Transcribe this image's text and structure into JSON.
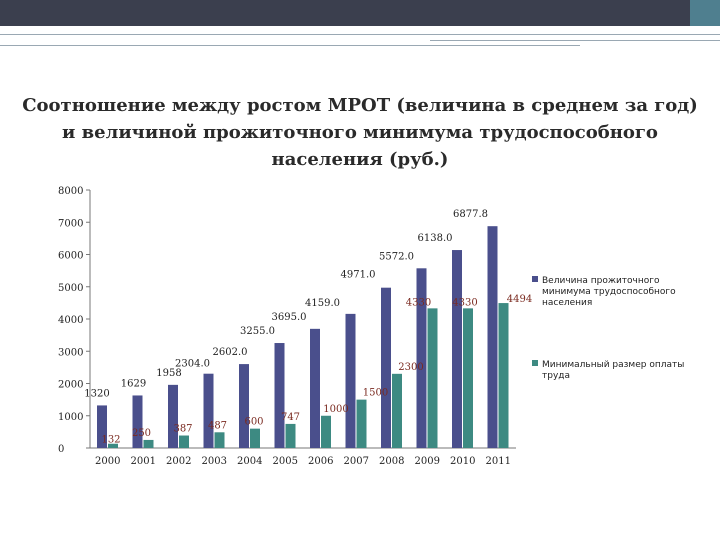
{
  "chart_data": {
    "type": "bar",
    "title": "Соотношение между ростом МРОТ (величина в среднем за год) и величиной прожиточного минимума трудоспособного населения (руб.)",
    "categories": [
      "2000",
      "2001",
      "2002",
      "2003",
      "2004",
      "2005",
      "2006",
      "2007",
      "2008",
      "2009",
      "2010",
      "2011"
    ],
    "series": [
      {
        "name": "Величина прожиточного минимума трудоспособного населения",
        "color": "#4a4f8c",
        "values": [
          1320,
          1629,
          1958,
          2304,
          2602,
          3255,
          3695,
          4159,
          4971,
          5572,
          6138,
          6877.8
        ],
        "labels": [
          "1320",
          "1629",
          "1958",
          "2304.0",
          "2602.0",
          "3255.0",
          "3695.0",
          "4159.0",
          "4971.0",
          "5572.0",
          "6138.0",
          "6877.8"
        ]
      },
      {
        "name": "Минимальный размер оплаты труда",
        "color": "#3d8a82",
        "values": [
          132,
          250,
          387,
          487,
          600,
          747,
          1000,
          1500,
          2300,
          4330,
          4330,
          4494
        ],
        "labels": [
          "132",
          "250",
          "387",
          "487",
          "600",
          "747",
          "1000",
          "1500",
          "2300",
          "4330",
          "4330",
          "4494"
        ]
      }
    ],
    "ylim": [
      0,
      8000
    ],
    "yticks": [
      "0",
      "1000",
      "2000",
      "3000",
      "4000",
      "5000",
      "6000",
      "7000",
      "8000"
    ],
    "legend_position": "right",
    "grid": false
  }
}
